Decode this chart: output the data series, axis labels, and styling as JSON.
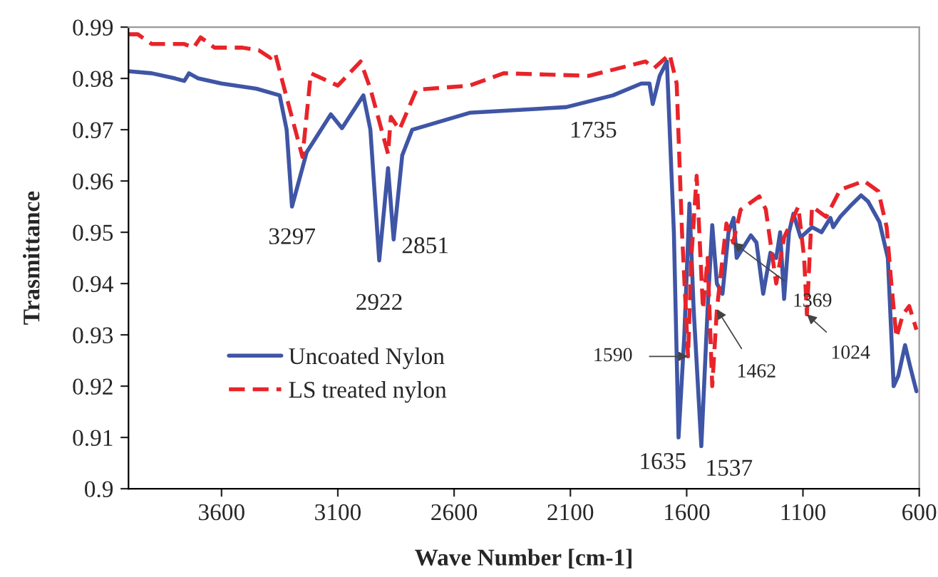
{
  "chart_data": {
    "type": "line",
    "xlabel": "Wave Number [cm-1]",
    "ylabel": "Trasmittance",
    "xlim": [
      4000,
      600
    ],
    "ylim": [
      0.9,
      0.99
    ],
    "xticks": [
      3600,
      3100,
      2600,
      2100,
      1600,
      1100,
      600
    ],
    "yticks": [
      0.9,
      0.91,
      0.92,
      0.93,
      0.94,
      0.95,
      0.96,
      0.97,
      0.98,
      0.99
    ],
    "grid": false,
    "legend": "bottom left",
    "marker": "none",
    "series": [
      {
        "name": "Uncoated Nylon",
        "color": "#3f55a5",
        "line_style": "solid",
        "x": [
          4000,
          3900,
          3800,
          3760,
          3740,
          3700,
          3600,
          3450,
          3350,
          3320,
          3297,
          3234,
          3130,
          3082,
          2990,
          2960,
          2922,
          2884,
          2860,
          2823,
          2780,
          2533,
          2118,
          1917,
          1795,
          1760,
          1746,
          1716,
          1685,
          1655,
          1635,
          1610,
          1588,
          1570,
          1537,
          1510,
          1490,
          1470,
          1446,
          1420,
          1398,
          1385,
          1324,
          1300,
          1271,
          1240,
          1215,
          1198,
          1181,
          1160,
          1141,
          1110,
          1061,
          1020,
          982,
          970,
          940,
          899,
          850,
          820,
          771,
          735,
          710,
          690,
          661,
          640,
          612
        ],
        "values": [
          0.9814,
          0.981,
          0.98,
          0.9795,
          0.981,
          0.98,
          0.979,
          0.978,
          0.9767,
          0.97,
          0.955,
          0.9656,
          0.973,
          0.9703,
          0.9767,
          0.97,
          0.9445,
          0.9625,
          0.9486,
          0.965,
          0.97,
          0.9733,
          0.9744,
          0.9767,
          0.979,
          0.979,
          0.975,
          0.9805,
          0.9833,
          0.95,
          0.91,
          0.93,
          0.9556,
          0.935,
          0.9083,
          0.935,
          0.9514,
          0.94,
          0.938,
          0.95,
          0.9528,
          0.945,
          0.9494,
          0.948,
          0.938,
          0.946,
          0.945,
          0.95,
          0.937,
          0.95,
          0.9536,
          0.949,
          0.951,
          0.95,
          0.9528,
          0.951,
          0.953,
          0.955,
          0.9572,
          0.956,
          0.952,
          0.945,
          0.92,
          0.922,
          0.928,
          0.924,
          0.919
        ]
      },
      {
        "name": "LS treated nylon",
        "color": "#e8242a",
        "line_style": "dashed",
        "x": [
          4000,
          3960,
          3900,
          3760,
          3720,
          3690,
          3630,
          3510,
          3440,
          3390,
          3370,
          3330,
          3252,
          3216,
          3100,
          3002,
          2960,
          2884,
          2872,
          2835,
          2762,
          2533,
          2387,
          2021,
          1777,
          1740,
          1673,
          1643,
          1620,
          1594,
          1580,
          1557,
          1530,
          1510,
          1490,
          1470,
          1429,
          1400,
          1368,
          1288,
          1260,
          1215,
          1181,
          1120,
          1095,
          1083,
          1061,
          1000,
          940,
          837,
          776,
          740,
          720,
          698,
          670,
          643,
          612
        ],
        "values": [
          0.9886,
          0.9886,
          0.9867,
          0.9867,
          0.986,
          0.988,
          0.986,
          0.986,
          0.9855,
          0.984,
          0.985,
          0.978,
          0.9647,
          0.981,
          0.9786,
          0.9833,
          0.978,
          0.9653,
          0.9725,
          0.97,
          0.9778,
          0.9786,
          0.981,
          0.9805,
          0.9833,
          0.982,
          0.9847,
          0.979,
          0.95,
          0.9258,
          0.945,
          0.961,
          0.935,
          0.945,
          0.92,
          0.935,
          0.9517,
          0.948,
          0.9544,
          0.957,
          0.9545,
          0.94,
          0.949,
          0.955,
          0.945,
          0.934,
          0.955,
          0.953,
          0.9583,
          0.96,
          0.958,
          0.951,
          0.94,
          0.9295,
          0.934,
          0.9356,
          0.931
        ]
      }
    ],
    "annotations": [
      {
        "text": "3297",
        "x": 3297,
        "y": 0.955
      },
      {
        "text": "2922",
        "x": 2922,
        "y": 0.9445
      },
      {
        "text": "2851",
        "x": 2860,
        "y": 0.9486
      },
      {
        "text": "1735",
        "x": 1746,
        "y": 0.975
      },
      {
        "text": "1635",
        "x": 1635,
        "y": 0.91
      },
      {
        "text": "1537",
        "x": 1537,
        "y": 0.9083
      },
      {
        "text": "1590",
        "x": 1594,
        "y": 0.9258
      },
      {
        "text": "1462",
        "x": 1470,
        "y": 0.935
      },
      {
        "text": "1369",
        "x": 1400,
        "y": 0.948
      },
      {
        "text": "1024",
        "x": 1083,
        "y": 0.934
      }
    ]
  }
}
